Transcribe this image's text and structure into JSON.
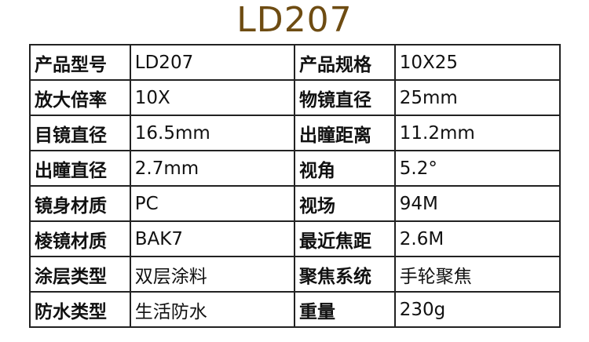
{
  "title": "LD207",
  "title_color": "#6e4c12",
  "rows": [
    {
      "k1": "产品型号",
      "v1": "LD207",
      "k2": "产品规格",
      "v2": "10X25"
    },
    {
      "k1": "放大倍率",
      "v1": "10X",
      "k2": "物镜直径",
      "v2": "25mm"
    },
    {
      "k1": "目镜直径",
      "v1": "16.5mm",
      "k2": "出瞳距离",
      "v2": "11.2mm"
    },
    {
      "k1": "出瞳直径",
      "v1": "2.7mm",
      "k2": "视角",
      "v2": "5.2°"
    },
    {
      "k1": "镜身材质",
      "v1": "PC",
      "k2": "视场",
      "v2": "94M"
    },
    {
      "k1": "棱镜材质",
      "v1": "BAK7",
      "k2": "最近焦距",
      "v2": "2.6M"
    },
    {
      "k1": "涂层类型",
      "v1": "双层涂料",
      "k2": "聚焦系统",
      "v2": "手轮聚焦"
    },
    {
      "k1": "防水类型",
      "v1": "生活防水",
      "k2": "重量",
      "v2": "230g"
    }
  ]
}
